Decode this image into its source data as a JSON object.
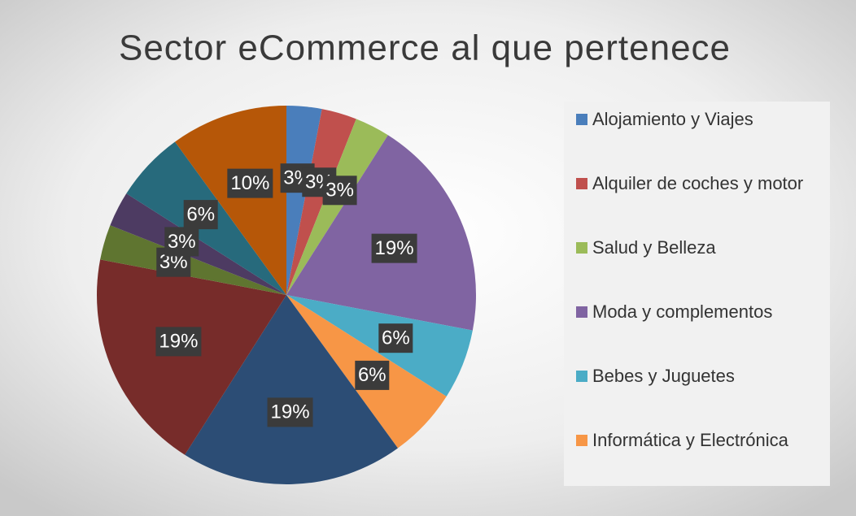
{
  "chart_data": {
    "type": "pie",
    "title": "Sector eCommerce al que pertenece",
    "categories": [
      "Alojamiento y Viajes",
      "Alquiler de coches y motor",
      "Salud y Belleza",
      "Moda y complementos",
      "Bebes y Juguetes",
      "Informática y Electrónica",
      null,
      null,
      null,
      null,
      null,
      null
    ],
    "values": [
      3,
      3,
      3,
      19,
      6,
      6,
      19,
      19,
      3,
      3,
      6,
      10
    ],
    "value_labels": [
      "3%",
      "3%",
      "3%",
      "19%",
      "6%",
      "6%",
      "19%",
      "19%",
      "3%",
      "3%",
      "6%",
      "10%"
    ],
    "colors": [
      "#4a7ebb",
      "#c0504d",
      "#9bbb59",
      "#8064a2",
      "#4bacc6",
      "#f79646",
      "#2c4d75",
      "#772c2a",
      "#5f7530",
      "#4d3b62",
      "#276a7c",
      "#b65708"
    ],
    "legend": "right"
  }
}
